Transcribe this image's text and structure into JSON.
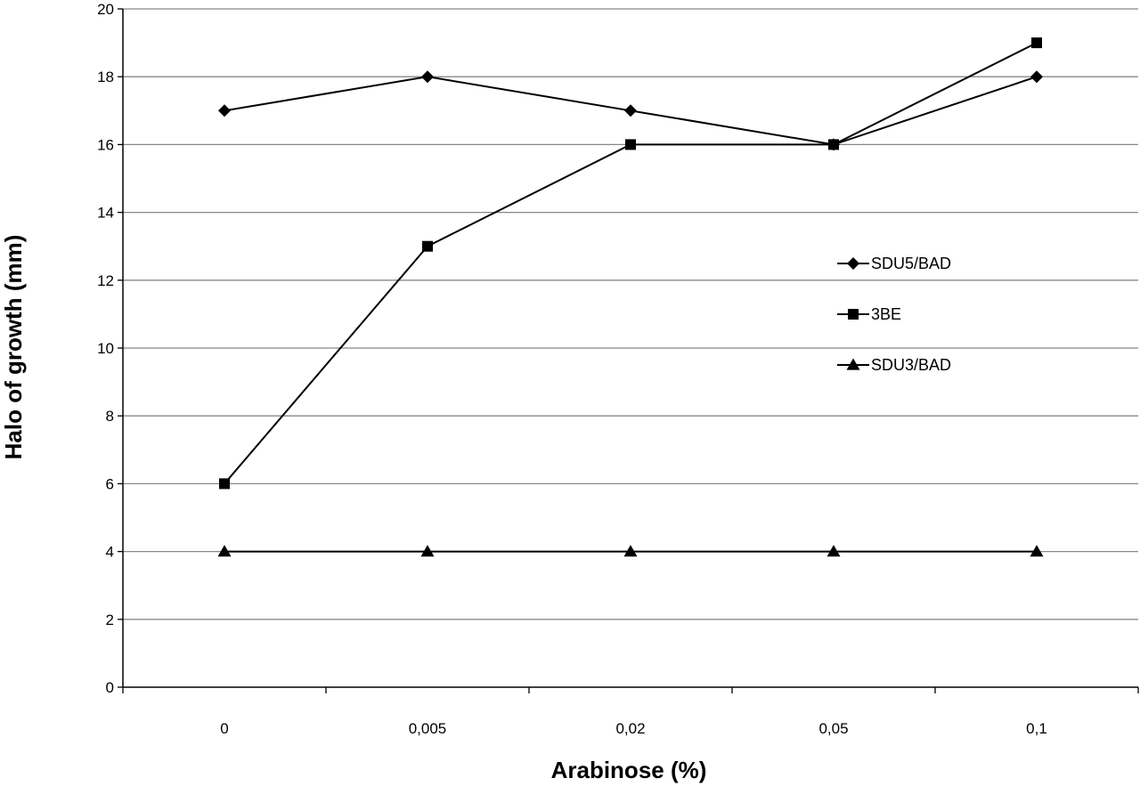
{
  "chart_data": {
    "type": "line",
    "categories": [
      "0",
      "0,005",
      "0,02",
      "0,05",
      "0,1"
    ],
    "series": [
      {
        "name": "SDU5/BAD",
        "marker": "diamond",
        "values": [
          17,
          18,
          17,
          16,
          18
        ]
      },
      {
        "name": "3BE",
        "marker": "square",
        "values": [
          6,
          13,
          16,
          16,
          19
        ]
      },
      {
        "name": "SDU3/BAD",
        "marker": "triangle",
        "values": [
          4,
          4,
          4,
          4,
          4
        ]
      }
    ],
    "xlabel": "Arabinose (%)",
    "ylabel": "Halo of growth (mm)",
    "ylim": [
      0,
      20
    ],
    "yticks": [
      0,
      2,
      4,
      6,
      8,
      10,
      12,
      14,
      16,
      18,
      20
    ],
    "grid": true,
    "legend_position": "right",
    "colors": {
      "line": "#000000",
      "grid": "#888888",
      "background": "#ffffff"
    }
  }
}
